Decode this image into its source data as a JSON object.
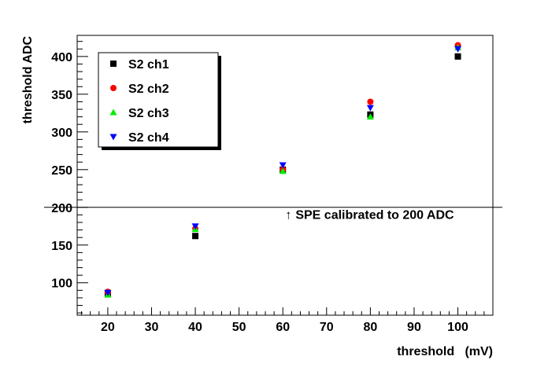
{
  "chart_data": {
    "type": "scatter",
    "title": "",
    "xlabel": "threshold   (mV)",
    "ylabel": "threshold  ADC",
    "xlim": [
      13,
      108
    ],
    "ylim": [
      57,
      428
    ],
    "x_ticks": [
      20,
      30,
      40,
      50,
      60,
      70,
      80,
      90,
      100
    ],
    "y_ticks": [
      100,
      150,
      200,
      250,
      300,
      350,
      400
    ],
    "grid": false,
    "legend_position": "top-left",
    "series": [
      {
        "name": "S2 ch1",
        "marker": "square",
        "color": "#000000",
        "x": [
          20,
          40,
          60,
          80,
          100
        ],
        "y": [
          86,
          162,
          250,
          323,
          400
        ]
      },
      {
        "name": "S2 ch2",
        "marker": "circle",
        "color": "#ff0000",
        "x": [
          20,
          40,
          60,
          80,
          100
        ],
        "y": [
          88,
          172,
          250,
          340,
          415
        ]
      },
      {
        "name": "S2 ch3",
        "marker": "triangle-up",
        "color": "#00ee00",
        "x": [
          20,
          40,
          60,
          80,
          100
        ],
        "y": [
          84,
          171,
          248,
          320,
          412
        ]
      },
      {
        "name": "S2 ch4",
        "marker": "triangle-down",
        "color": "#0000ff",
        "x": [
          20,
          40,
          60,
          80,
          100
        ],
        "y": [
          87,
          175,
          256,
          332,
          410
        ]
      }
    ],
    "reference_line": {
      "y": 200
    },
    "annotation": {
      "text": "SPE calibrated to 200 ADC",
      "arrow": "↑",
      "x": 62,
      "y": 191
    }
  }
}
